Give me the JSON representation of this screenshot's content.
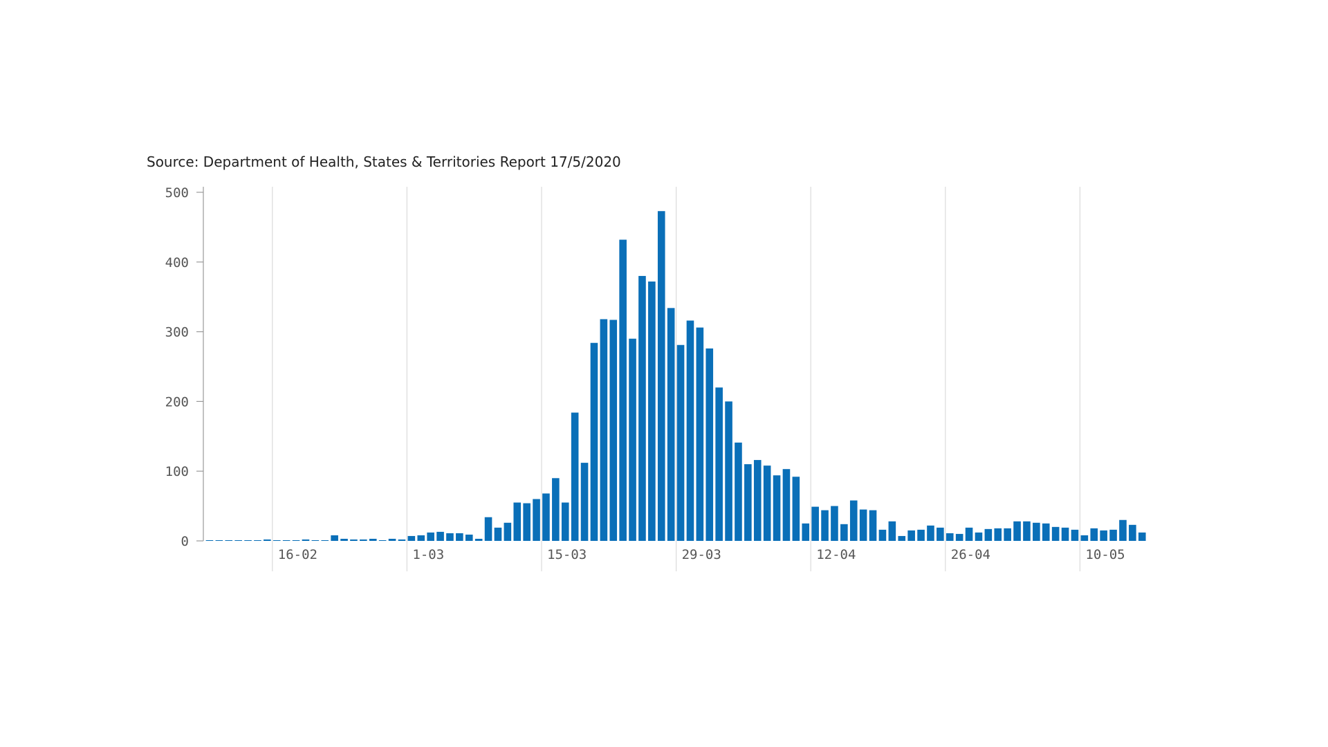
{
  "source": "Source: Department of Health, States & Territories Report 17/5/2020",
  "colors": {
    "bar": "#0a6fb8",
    "grid": "#dddddd",
    "axis": "#999999"
  },
  "chart_data": {
    "type": "bar",
    "title": "",
    "xlabel": "",
    "ylabel": "",
    "ylim": [
      0,
      500
    ],
    "yticks": [
      0,
      100,
      200,
      300,
      400,
      500
    ],
    "grid": "vertical",
    "x_start": "2020-02-09",
    "x_tick_labels": [
      {
        "label": "16-02",
        "date": "2020-02-16"
      },
      {
        "label": "1-03",
        "date": "2020-03-01"
      },
      {
        "label": "15-03",
        "date": "2020-03-15"
      },
      {
        "label": "29-03",
        "date": "2020-03-29"
      },
      {
        "label": "12-04",
        "date": "2020-04-12"
      },
      {
        "label": "26-04",
        "date": "2020-04-26"
      },
      {
        "label": "10-05",
        "date": "2020-05-10"
      }
    ],
    "values": [
      1,
      1,
      1,
      1,
      1,
      1,
      2,
      1,
      1,
      1,
      2,
      1,
      1,
      8,
      3,
      2,
      2,
      3,
      1,
      3,
      2,
      7,
      8,
      12,
      13,
      11,
      11,
      9,
      3,
      34,
      19,
      26,
      55,
      54,
      60,
      68,
      90,
      55,
      184,
      112,
      284,
      318,
      317,
      432,
      290,
      380,
      372,
      473,
      334,
      281,
      316,
      306,
      276,
      220,
      200,
      141,
      110,
      116,
      108,
      94,
      103,
      92,
      25,
      49,
      44,
      50,
      24,
      58,
      45,
      44,
      16,
      28,
      7,
      15,
      16,
      22,
      19,
      11,
      10,
      19,
      12,
      17,
      18,
      18,
      28,
      28,
      26,
      25,
      20,
      19,
      16,
      8,
      18,
      15,
      16,
      30,
      23,
      12
    ]
  }
}
